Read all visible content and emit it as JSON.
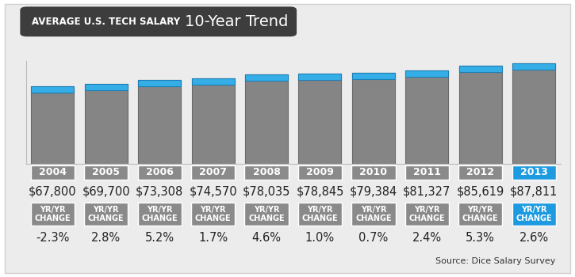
{
  "chart_data": {
    "type": "bar",
    "title": "AVERAGE U.S. TECH SALARY",
    "subtitle": "10-Year Trend",
    "categories": [
      "2004",
      "2005",
      "2006",
      "2007",
      "2008",
      "2009",
      "2010",
      "2011",
      "2012",
      "2013"
    ],
    "values": [
      67800,
      69700,
      73308,
      74570,
      78035,
      78845,
      79384,
      81327,
      85619,
      87811
    ],
    "value_labels": [
      "$67,800",
      "$69,700",
      "$73,308",
      "$74,570",
      "$78,035",
      "$78,845",
      "$79,384",
      "$81,327",
      "$85,619",
      "$87,811"
    ],
    "data_labels": true,
    "color": "#858585",
    "ylim": [
      0,
      90000
    ],
    "tick_labels": false,
    "grid": false,
    "changes": {
      "header": "YR/YR\nCHANGE",
      "labels": [
        "-2.3%",
        "2.8%",
        "5.2%",
        "1.7%",
        "4.6%",
        "1.0%",
        "0.7%",
        "2.4%",
        "5.3%",
        "2.6%"
      ]
    },
    "annotations": [
      "Source: Dice Salary Survey"
    ]
  }
}
